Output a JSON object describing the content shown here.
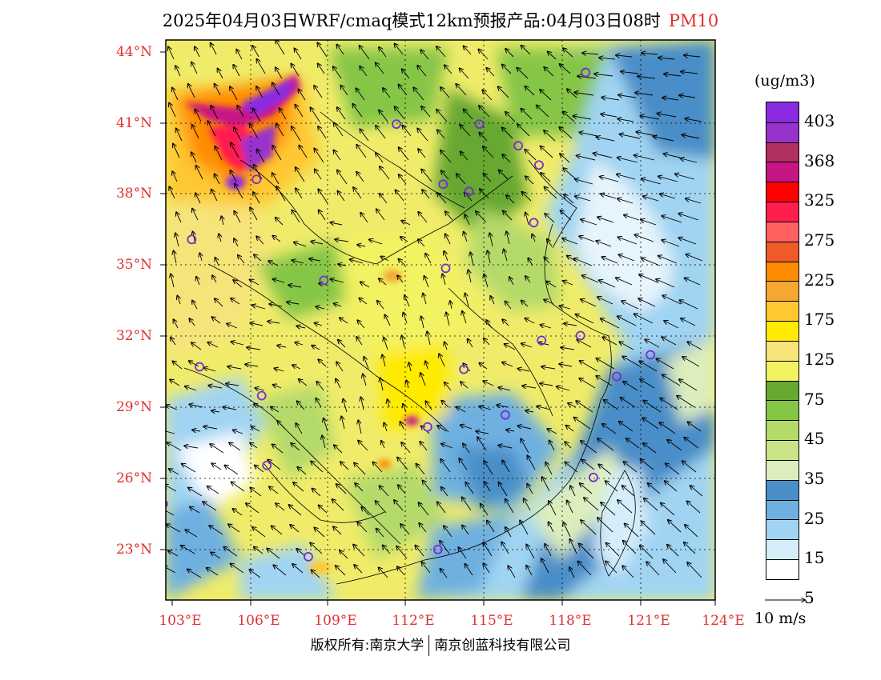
{
  "title": {
    "main": "2025年04月03日WRF/cmaq模式12km预报产品:04月03日08时",
    "variable": "PM10"
  },
  "map": {
    "lat_labels": [
      "44°N",
      "41°N",
      "38°N",
      "35°N",
      "32°N",
      "29°N",
      "26°N",
      "23°N"
    ],
    "lon_labels": [
      "103°E",
      "106°E",
      "109°E",
      "112°E",
      "115°E",
      "118°E",
      "121°E",
      "124°E"
    ],
    "extent": {
      "lon_min": 102.8,
      "lon_max": 124.0,
      "lat_min": 21.0,
      "lat_max": 44.3
    }
  },
  "legend": {
    "unit": "(ug/m3)",
    "colors": [
      "#8a2be2",
      "#9932cc",
      "#b03060",
      "#c71585",
      "#ff0000",
      "#ff1f4f",
      "#ff6060",
      "#f05a28",
      "#ff8c00",
      "#f4a830",
      "#ffc830",
      "#ffea00",
      "#f6e47a",
      "#f2f262",
      "#66a832",
      "#86c646",
      "#b4da6a",
      "#c8e486",
      "#dceebc",
      "#4a8ec8",
      "#6eb0e0",
      "#a0d4f2",
      "#d6eefa",
      "#ffffff"
    ],
    "labels": [
      "403",
      "368",
      "325",
      "275",
      "225",
      "175",
      "125",
      "75",
      "45",
      "35",
      "25",
      "15",
      "5"
    ]
  },
  "wind_reference": "10 m/s",
  "copyright": {
    "left": "版权所有:南京大学",
    "right": "南京创蓝科技有限公司"
  },
  "stations": [
    {
      "lon": 119.0,
      "lat": 42.95
    },
    {
      "lon": 111.7,
      "lat": 40.8
    },
    {
      "lon": 114.9,
      "lat": 40.8
    },
    {
      "lon": 116.4,
      "lat": 39.9
    },
    {
      "lon": 117.2,
      "lat": 39.1
    },
    {
      "lon": 113.5,
      "lat": 38.3
    },
    {
      "lon": 114.5,
      "lat": 38.0
    },
    {
      "lon": 106.3,
      "lat": 38.5
    },
    {
      "lon": 117.0,
      "lat": 36.7
    },
    {
      "lon": 103.8,
      "lat": 36.0
    },
    {
      "lon": 113.6,
      "lat": 34.8
    },
    {
      "lon": 108.9,
      "lat": 34.3
    },
    {
      "lon": 117.3,
      "lat": 31.8
    },
    {
      "lon": 118.8,
      "lat": 32.0
    },
    {
      "lon": 121.5,
      "lat": 31.2
    },
    {
      "lon": 120.2,
      "lat": 30.3
    },
    {
      "lon": 114.3,
      "lat": 30.6
    },
    {
      "lon": 104.1,
      "lat": 30.7
    },
    {
      "lon": 106.5,
      "lat": 29.5
    },
    {
      "lon": 115.9,
      "lat": 28.7
    },
    {
      "lon": 112.9,
      "lat": 28.2
    },
    {
      "lon": 106.7,
      "lat": 26.6
    },
    {
      "lon": 119.3,
      "lat": 26.1
    },
    {
      "lon": 102.7,
      "lat": 25.0
    },
    {
      "lon": 113.3,
      "lat": 23.1
    },
    {
      "lon": 108.3,
      "lat": 22.8
    }
  ]
}
